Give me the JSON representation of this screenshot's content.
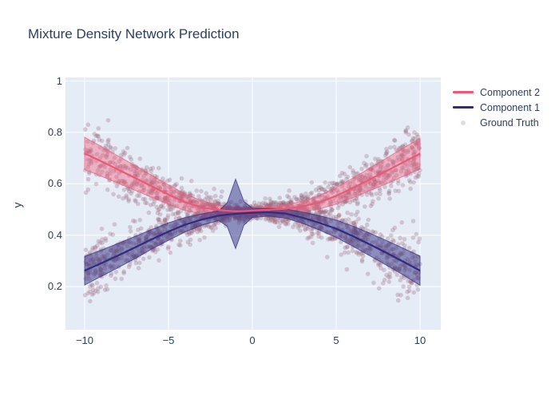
{
  "title": "Mixture Density Network Prediction",
  "axes": {
    "y_label": "y",
    "x_tick_labels": [
      "−10",
      "−5",
      "0",
      "5",
      "10"
    ],
    "y_tick_labels": [
      "0.2",
      "0.4",
      "0.6",
      "0.8",
      "1"
    ]
  },
  "legend": {
    "items": [
      {
        "label": "Component 2",
        "marker": "line",
        "color": "#ee5876"
      },
      {
        "label": "Component 1",
        "marker": "line",
        "color": "#2e2c80"
      },
      {
        "label": "Ground Truth",
        "marker": "dot",
        "color": "#e5d9de"
      }
    ]
  },
  "chart_data": {
    "type": "line",
    "title": "Mixture Density Network Prediction",
    "xlabel": "",
    "ylabel": "y",
    "x_ticks": [
      -10,
      -5,
      0,
      5,
      10
    ],
    "y_ticks": [
      0.2,
      0.4,
      0.6,
      0.8,
      1
    ],
    "x_axis_range": [
      -11.1,
      11.2
    ],
    "y_axis_range": [
      0.03,
      1.015
    ],
    "grid": true,
    "legend_position": "right-top",
    "colors": {
      "plot_bg": "#e5ecf6",
      "grid": "#ffffff",
      "text": "#2a3f5f"
    },
    "x": [
      -10,
      -9,
      -8,
      -7,
      -6,
      -5,
      -4,
      -3,
      -2,
      -1.5,
      -1,
      -0.5,
      0,
      1,
      2,
      3,
      4,
      5,
      6,
      7,
      8,
      9,
      10
    ],
    "series": [
      {
        "name": "Component 2",
        "line_color": "#ee5876",
        "band_fill": "rgba(240,92,124,0.42)",
        "band_edge": "rgba(240,92,124,0.7)",
        "mean": [
          0.718,
          0.687,
          0.655,
          0.623,
          0.59,
          0.558,
          0.528,
          0.508,
          0.498,
          0.495,
          0.493,
          0.494,
          0.496,
          0.499,
          0.503,
          0.512,
          0.528,
          0.553,
          0.584,
          0.617,
          0.65,
          0.684,
          0.717
        ],
        "band_halfwidth": [
          0.063,
          0.058,
          0.053,
          0.048,
          0.043,
          0.038,
          0.032,
          0.026,
          0.02,
          0.017,
          0.016,
          0.014,
          0.013,
          0.014,
          0.016,
          0.02,
          0.026,
          0.032,
          0.038,
          0.044,
          0.05,
          0.055,
          0.06
        ]
      },
      {
        "name": "Component 1",
        "line_color": "#2e2c80",
        "band_fill": "rgba(49,46,129,0.5)",
        "band_edge": "rgba(49,46,129,0.7)",
        "mean": [
          0.262,
          0.291,
          0.321,
          0.352,
          0.384,
          0.414,
          0.441,
          0.461,
          0.476,
          0.48,
          0.483,
          0.485,
          0.487,
          0.489,
          0.484,
          0.468,
          0.448,
          0.425,
          0.396,
          0.364,
          0.331,
          0.297,
          0.262
        ],
        "band_halfwidth": [
          0.056,
          0.051,
          0.047,
          0.043,
          0.038,
          0.034,
          0.028,
          0.022,
          0.019,
          0.046,
          0.135,
          0.046,
          0.018,
          0.015,
          0.018,
          0.022,
          0.028,
          0.034,
          0.039,
          0.044,
          0.048,
          0.052,
          0.057
        ]
      }
    ],
    "scatter": {
      "name": "Ground Truth",
      "color": "rgba(152,103,122,0.3)",
      "radius": 2.8,
      "n_per_branch": 1150,
      "seed": 9,
      "x_range": [
        -10,
        10
      ],
      "noise_base": 0.013,
      "noise_slope": 0.0052,
      "note": "points sampled around each component mean curve with noise std = noise_base + noise_slope*|x|"
    }
  }
}
